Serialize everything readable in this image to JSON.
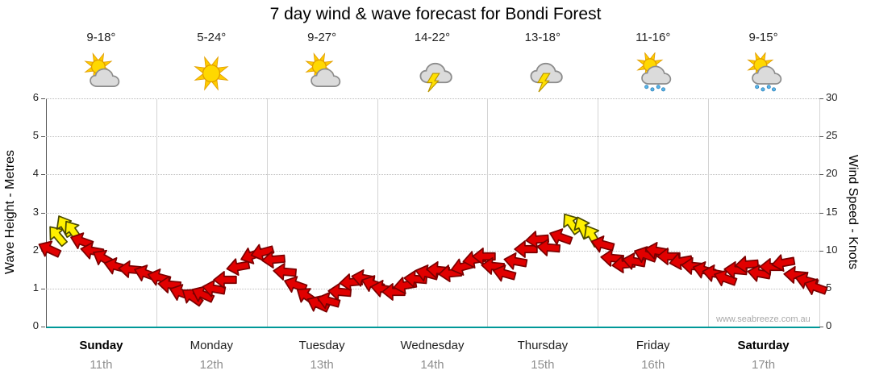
{
  "title": "7 day wind & wave forecast for Bondi Forest",
  "watermark": "www.seabreeze.com.au",
  "colors": {
    "arrow_red": "#E10000",
    "arrow_red_outline": "#7A0000",
    "arrow_yellow": "#FFF000",
    "arrow_yellow_outline": "#4A4A00",
    "baseline": "#009898",
    "grid": "#d4d4d4"
  },
  "chart_data": {
    "type": "wind-arrows",
    "days": [
      {
        "name": "Sunday",
        "date": "11th",
        "temp": "9-18°",
        "icon": "sun-cloud",
        "bold": true
      },
      {
        "name": "Monday",
        "date": "12th",
        "temp": "5-24°",
        "icon": "sun",
        "bold": false
      },
      {
        "name": "Tuesday",
        "date": "13th",
        "temp": "9-27°",
        "icon": "sun-cloud",
        "bold": false
      },
      {
        "name": "Wednesday",
        "date": "14th",
        "temp": "14-22°",
        "icon": "storm",
        "bold": false
      },
      {
        "name": "Thursday",
        "date": "15th",
        "temp": "13-18°",
        "icon": "storm",
        "bold": false
      },
      {
        "name": "Friday",
        "date": "16th",
        "temp": "11-16°",
        "icon": "sun-cloud-rain",
        "bold": false
      },
      {
        "name": "Saturday",
        "date": "17th",
        "temp": "9-15°",
        "icon": "sun-cloud-rain",
        "bold": true
      }
    ],
    "left_axis": {
      "label": "Wave Height - Metres",
      "min": 0,
      "max": 6,
      "ticks": [
        0,
        1,
        2,
        3,
        4,
        5,
        6
      ]
    },
    "right_axis": {
      "label": "Wind Speed - Knots",
      "min": 0,
      "max": 30,
      "ticks": [
        0,
        5,
        10,
        15,
        20,
        25,
        30
      ]
    },
    "point_fields": [
      "day",
      "frac",
      "knots",
      "dir_deg",
      "color"
    ],
    "points": [
      [
        0,
        0.03,
        10.2,
        205,
        "r"
      ],
      [
        0,
        0.1,
        12.0,
        230,
        "y"
      ],
      [
        0,
        0.17,
        13.2,
        240,
        "y"
      ],
      [
        0,
        0.24,
        12.6,
        235,
        "y"
      ],
      [
        0,
        0.32,
        11.2,
        200,
        "r"
      ],
      [
        0,
        0.42,
        10.0,
        190,
        "r"
      ],
      [
        0,
        0.52,
        9.0,
        210,
        "r"
      ],
      [
        0,
        0.63,
        8.0,
        195,
        "r"
      ],
      [
        0,
        0.76,
        7.5,
        185,
        "r"
      ],
      [
        0,
        0.9,
        7.0,
        200,
        "r"
      ],
      [
        1,
        0.02,
        6.5,
        195,
        "r"
      ],
      [
        1,
        0.12,
        5.5,
        185,
        "r"
      ],
      [
        1,
        0.22,
        4.5,
        200,
        "r"
      ],
      [
        1,
        0.32,
        3.9,
        215,
        "r"
      ],
      [
        1,
        0.42,
        4.2,
        205,
        "r"
      ],
      [
        1,
        0.52,
        5.0,
        190,
        "r"
      ],
      [
        1,
        0.62,
        6.2,
        180,
        "r"
      ],
      [
        1,
        0.74,
        7.8,
        170,
        "r"
      ],
      [
        1,
        0.86,
        9.3,
        160,
        "r"
      ],
      [
        1,
        0.96,
        9.8,
        165,
        "r"
      ],
      [
        2,
        0.06,
        8.8,
        175,
        "r"
      ],
      [
        2,
        0.16,
        7.2,
        185,
        "r"
      ],
      [
        2,
        0.26,
        5.5,
        200,
        "r"
      ],
      [
        2,
        0.36,
        4.0,
        215,
        "r"
      ],
      [
        2,
        0.46,
        3.0,
        205,
        "r"
      ],
      [
        2,
        0.56,
        3.4,
        195,
        "r"
      ],
      [
        2,
        0.66,
        4.6,
        185,
        "r"
      ],
      [
        2,
        0.76,
        5.8,
        175,
        "r"
      ],
      [
        2,
        0.87,
        6.4,
        190,
        "r"
      ],
      [
        2,
        0.96,
        5.6,
        200,
        "r"
      ],
      [
        3,
        0.05,
        5.0,
        190,
        "r"
      ],
      [
        3,
        0.15,
        4.6,
        180,
        "r"
      ],
      [
        3,
        0.25,
        5.4,
        170,
        "r"
      ],
      [
        3,
        0.35,
        6.3,
        185,
        "r"
      ],
      [
        3,
        0.45,
        7.0,
        195,
        "r"
      ],
      [
        3,
        0.55,
        7.4,
        185,
        "r"
      ],
      [
        3,
        0.66,
        7.0,
        175,
        "r"
      ],
      [
        3,
        0.77,
        7.8,
        165,
        "r"
      ],
      [
        3,
        0.88,
        8.8,
        170,
        "r"
      ],
      [
        3,
        0.97,
        9.2,
        180,
        "r"
      ],
      [
        4,
        0.05,
        8.0,
        185,
        "r"
      ],
      [
        4,
        0.15,
        7.0,
        195,
        "r"
      ],
      [
        4,
        0.25,
        8.6,
        190,
        "r"
      ],
      [
        4,
        0.35,
        10.2,
        180,
        "r"
      ],
      [
        4,
        0.45,
        11.4,
        175,
        "r"
      ],
      [
        4,
        0.55,
        10.4,
        185,
        "r"
      ],
      [
        4,
        0.66,
        11.8,
        200,
        "r"
      ],
      [
        4,
        0.76,
        13.6,
        235,
        "y"
      ],
      [
        4,
        0.86,
        13.0,
        245,
        "y"
      ],
      [
        4,
        0.95,
        12.0,
        240,
        "y"
      ],
      [
        5,
        0.04,
        10.8,
        195,
        "r"
      ],
      [
        5,
        0.13,
        9.0,
        185,
        "r"
      ],
      [
        5,
        0.23,
        8.2,
        175,
        "r"
      ],
      [
        5,
        0.33,
        8.6,
        190,
        "r"
      ],
      [
        5,
        0.43,
        9.4,
        200,
        "r"
      ],
      [
        5,
        0.53,
        10.0,
        190,
        "r"
      ],
      [
        5,
        0.64,
        9.2,
        180,
        "r"
      ],
      [
        5,
        0.75,
        8.6,
        170,
        "r"
      ],
      [
        5,
        0.86,
        8.0,
        185,
        "r"
      ],
      [
        5,
        0.96,
        7.4,
        195,
        "r"
      ],
      [
        6,
        0.05,
        7.0,
        190,
        "r"
      ],
      [
        6,
        0.15,
        6.4,
        200,
        "r"
      ],
      [
        6,
        0.25,
        7.4,
        185,
        "r"
      ],
      [
        6,
        0.35,
        8.2,
        175,
        "r"
      ],
      [
        6,
        0.46,
        7.0,
        190,
        "r"
      ],
      [
        6,
        0.57,
        7.8,
        180,
        "r"
      ],
      [
        6,
        0.68,
        8.4,
        170,
        "r"
      ],
      [
        6,
        0.79,
        6.8,
        185,
        "r"
      ],
      [
        6,
        0.89,
        6.0,
        195,
        "r"
      ],
      [
        6,
        0.97,
        5.2,
        200,
        "r"
      ]
    ]
  }
}
